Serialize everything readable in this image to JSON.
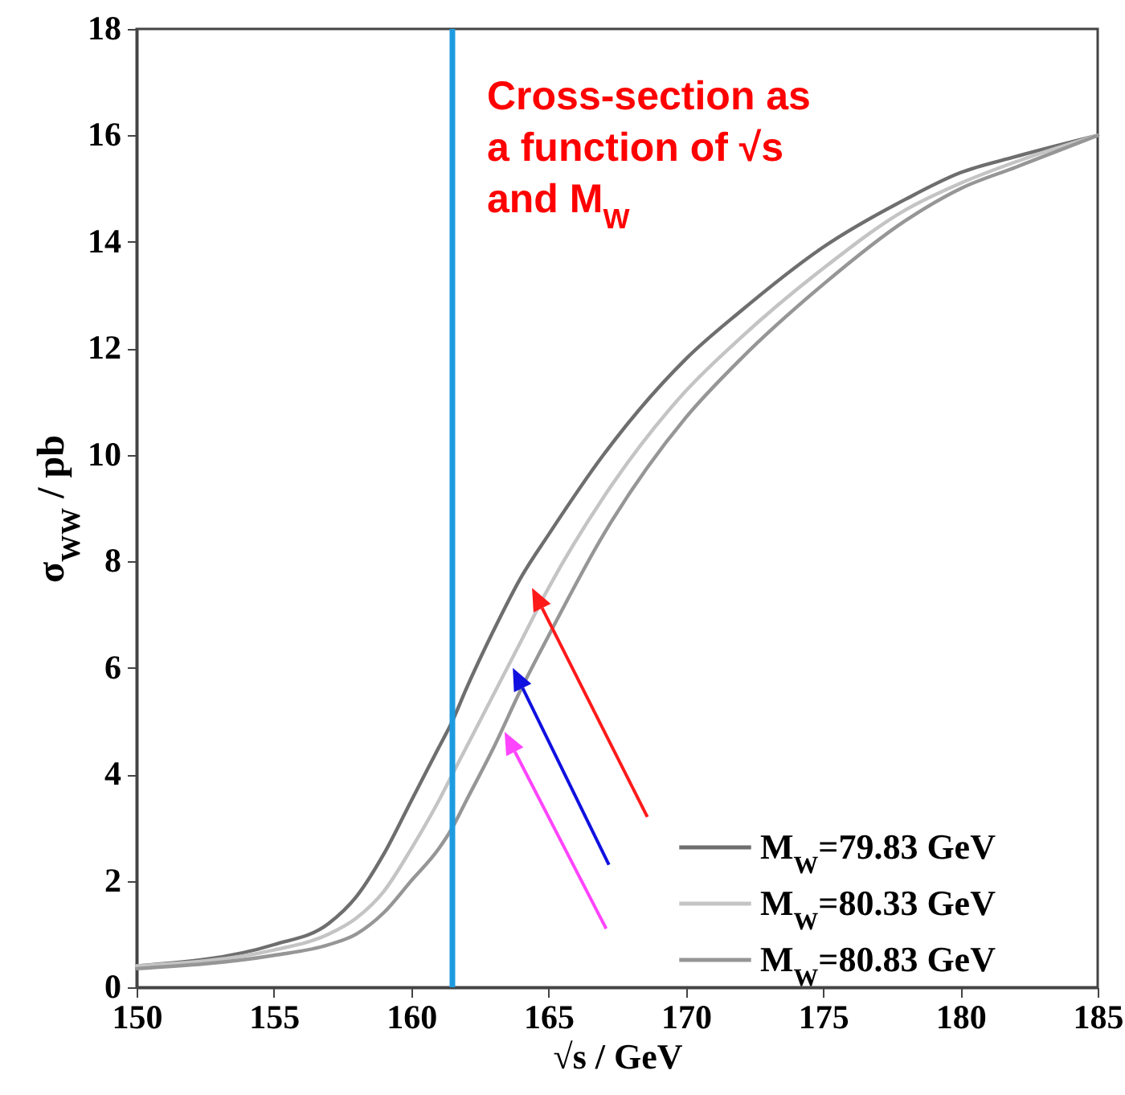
{
  "chart_data": {
    "type": "line",
    "xlabel": "√s / GeV",
    "ylabel": "σ$_{WW}$ / pb",
    "annotations": [
      "Cross-section as\na function of √s\nand M$_{W}$"
    ],
    "x": [
      150,
      155,
      157,
      158,
      159,
      160,
      161,
      161.5,
      162,
      163,
      164,
      165,
      167,
      170,
      172,
      175,
      178,
      180,
      182,
      185
    ],
    "series": [
      {
        "name": "M$_{W}$=79.83 GeV",
        "color": "#6e6e6e",
        "values": [
          0.4,
          0.8,
          1.2,
          1.7,
          2.5,
          3.5,
          4.5,
          5.0,
          5.6,
          6.7,
          7.7,
          8.5,
          10.0,
          11.8,
          12.7,
          13.9,
          14.8,
          15.3,
          15.6,
          16.0
        ]
      },
      {
        "name": "M$_{W}$=80.33 GeV",
        "color": "#c4c4c4",
        "values": [
          0.4,
          0.7,
          1.0,
          1.3,
          1.8,
          2.6,
          3.5,
          4.0,
          4.5,
          5.5,
          6.5,
          7.5,
          9.2,
          11.2,
          12.2,
          13.5,
          14.6,
          15.1,
          15.5,
          16.0
        ]
      },
      {
        "name": "M$_{W}$=80.83 GeV",
        "color": "#969696",
        "values": [
          0.35,
          0.6,
          0.8,
          1.0,
          1.4,
          2.0,
          2.6,
          3.0,
          3.5,
          4.5,
          5.6,
          6.6,
          8.5,
          10.7,
          11.8,
          13.2,
          14.4,
          15.0,
          15.4,
          16.0
        ]
      }
    ],
    "xlim": [
      150,
      185
    ],
    "xticks": [
      150,
      155,
      160,
      165,
      170,
      175,
      180,
      185
    ],
    "ylim": [
      0,
      18
    ],
    "yticks": [
      0,
      2,
      4,
      6,
      8,
      10,
      12,
      14,
      16,
      18
    ],
    "ref_lines": [
      {
        "axis": "x",
        "value": 161.5,
        "color": "#1e9be0"
      }
    ],
    "legend": "bottom right"
  }
}
